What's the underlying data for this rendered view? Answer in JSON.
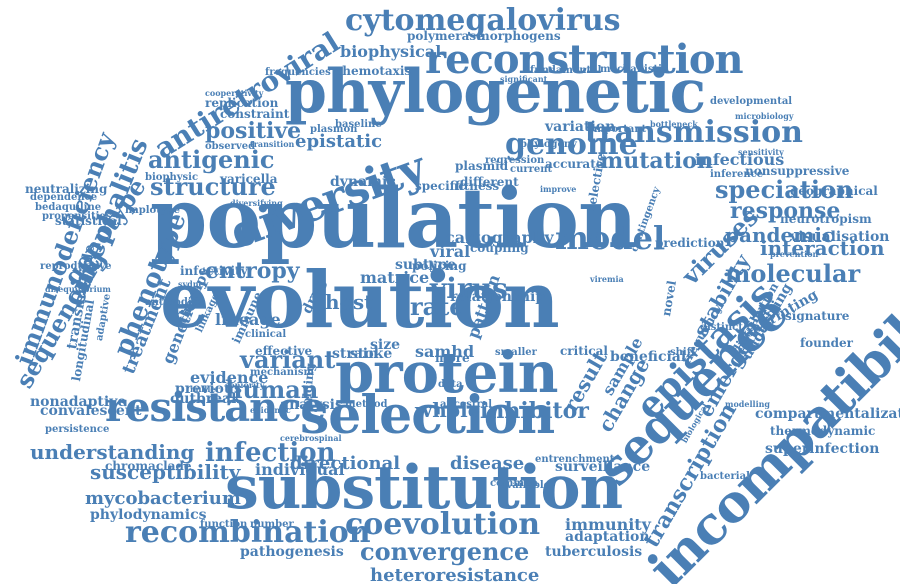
{
  "color": "#4a7fb5",
  "words": [
    "population",
    "evolution",
    "phylogenetic",
    "substitution",
    "selection",
    "incompatibilities",
    "protein",
    "sequence",
    "diversity",
    "reconstruction",
    "resistance",
    "cytomegalovirus",
    "model",
    "genome",
    "transmission",
    "antiretroviral",
    "immunodeficiency",
    "encephalitis",
    "phenotype",
    "sequencing",
    "genotype",
    "recombination",
    "coevolution",
    "convergence",
    "infection",
    "understanding",
    "susceptibility",
    "mycobacterium",
    "heteroresistance",
    "epistasis",
    "molecular",
    "speciation",
    "response",
    "mutation",
    "infectious",
    "antigenic",
    "structure",
    "positive",
    "variant",
    "human",
    "entropy",
    "host",
    "virus",
    "rate",
    "viruses",
    "interaction",
    "pandemic",
    "transcription",
    "emergence",
    "stability",
    "inhibitor",
    "whole",
    "immunity",
    "adaptation",
    "tuberculosis",
    "surveillance",
    "disease",
    "directional",
    "individual",
    "pathogenesis",
    "phylodynamics",
    "chromaclade",
    "evidence",
    "outbreak",
    "previous",
    "lineage",
    "treatment",
    "genetic",
    "superinfection",
    "sample",
    "change",
    "result",
    "size",
    "strain",
    "stoke",
    "samhd",
    "biophysical",
    "chemotaxis",
    "polymerase",
    "morphogens",
    "frequencies",
    "replication",
    "constraint",
    "cooperativity",
    "epistatic",
    "dynamic",
    "fitness",
    "varicella",
    "biophysic",
    "observed",
    "transition",
    "plasmid",
    "baseline",
    "plasmon",
    "variation",
    "important",
    "developmental",
    "microbiology",
    "sensitivity",
    "nonsuppressive",
    "inference",
    "geographical",
    "neurotropism",
    "prevention",
    "visualisation",
    "prediction",
    "contingency",
    "signature",
    "imprinting",
    "underlying",
    "distribution",
    "frequency",
    "modelling",
    "thermodynamic",
    "compartmentalization",
    "biological",
    "bacterial",
    "entrenchment",
    "available",
    "common",
    "ancestral",
    "folding",
    "method",
    "analysis",
    "mechanism",
    "seniority",
    "epidemic",
    "cerebrospinal",
    "persistence",
    "nonadaptive",
    "convalescent",
    "statistical",
    "haplotype",
    "diversifying",
    "neutralizing",
    "dependence",
    "bedaquiline",
    "propensities",
    "reproductive",
    "disequilibrium",
    "transmissible",
    "longitudinal",
    "adaptive",
    "antibodies",
    "therapy",
    "linkage",
    "infectivity",
    "sydney",
    "clinical",
    "effective",
    "immune",
    "drug",
    "viral",
    "matrice",
    "subtype",
    "specific",
    "different",
    "current",
    "accurate",
    "improve",
    "regression",
    "phylogeny",
    "fundamental",
    "significant",
    "mechanistic",
    "bottleneck",
    "function",
    "number",
    "beneficial",
    "shift",
    "distinct",
    "pattern",
    "data",
    "more",
    "cartography",
    "relationship",
    "selective",
    "founder",
    "muller",
    "critical",
    "policing",
    "smaller",
    "novel",
    "coupling",
    "viremia"
  ]
}
